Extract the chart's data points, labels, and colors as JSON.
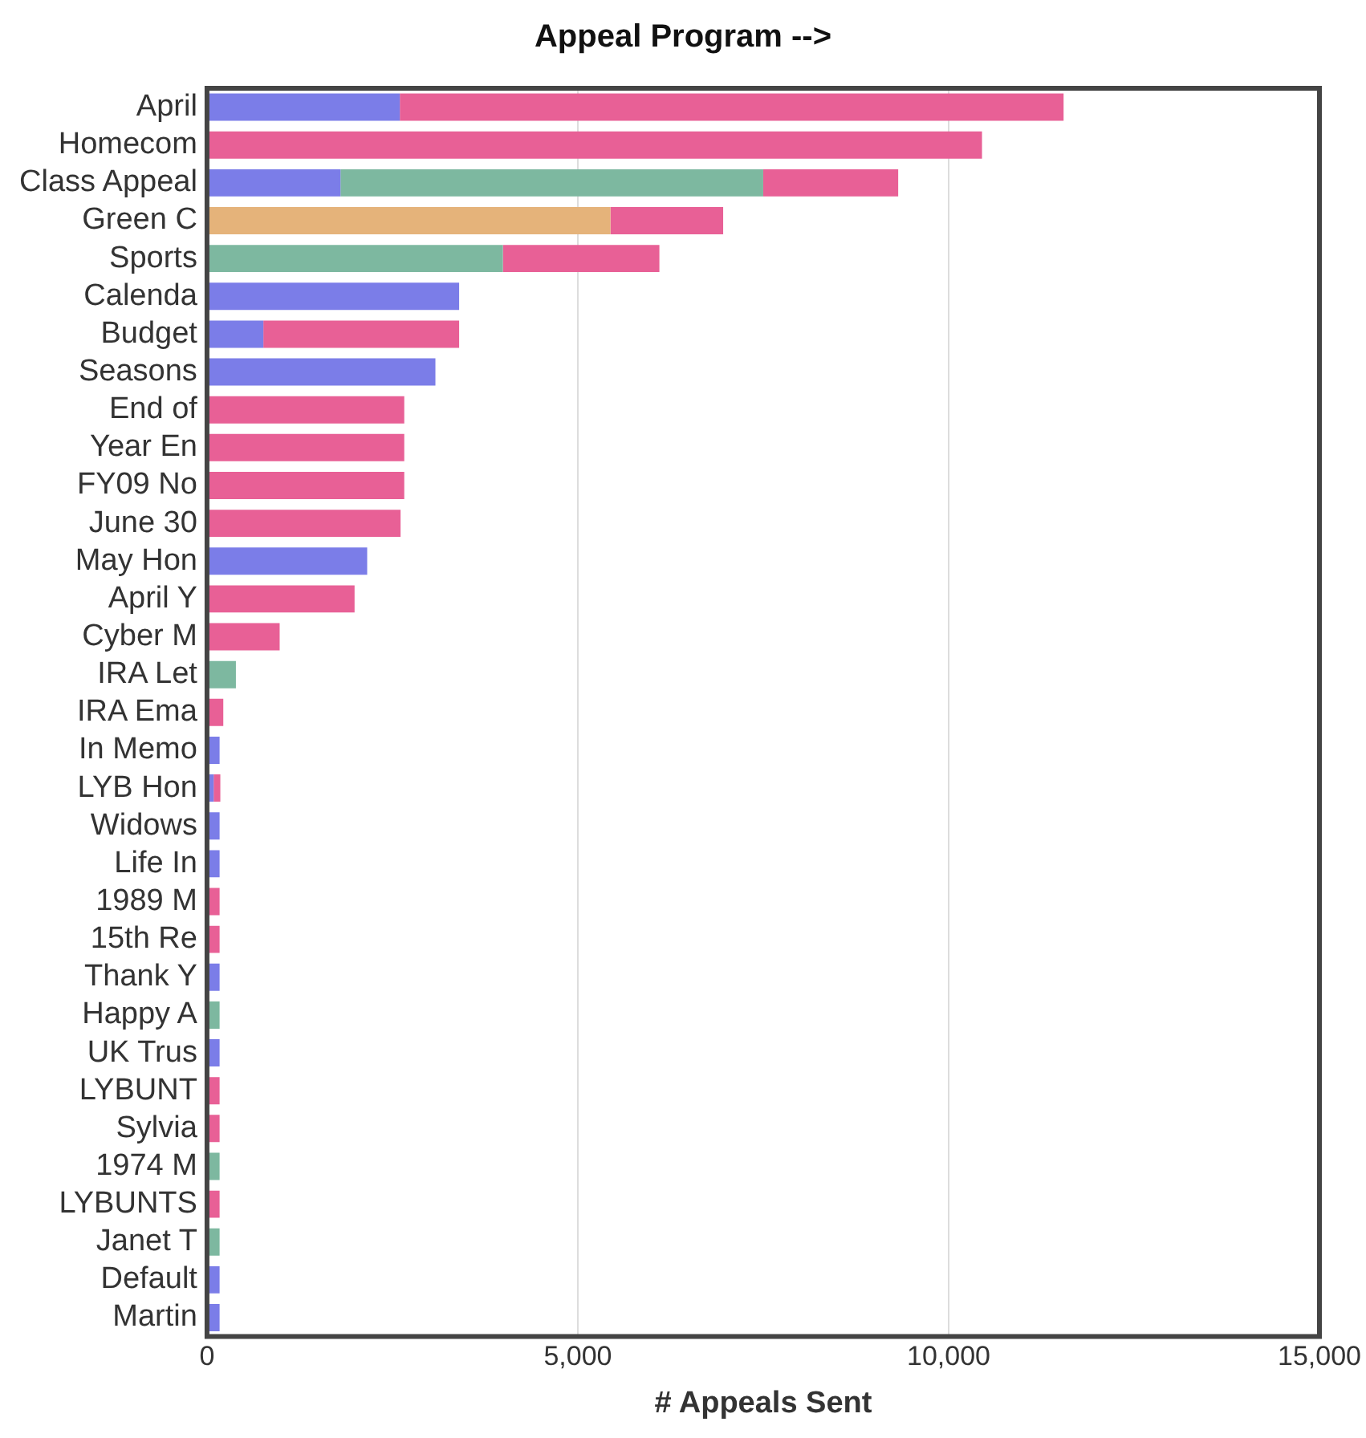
{
  "chart_data": {
    "type": "bar",
    "orientation": "horizontal",
    "stacked": true,
    "ylabel": "Appeal Program -->",
    "xlabel": "# Appeals Sent",
    "categories": [
      "April",
      "Homecom",
      "Class Appeal",
      "Green C",
      "Sports",
      "Calenda",
      "Budget",
      "Seasons",
      "End of",
      "Year En",
      "FY09 No",
      "June 30",
      "May Hon",
      "April Y",
      "Cyber M",
      "IRA Let",
      "IRA Ema",
      "In Memo",
      "LYB Hon",
      "Widows",
      "Life In",
      "1989 M",
      "15th Re",
      "Thank Y",
      "Happy A",
      "UK Trus",
      "LYBUNT",
      "Sylvia",
      "1974 M",
      "LYBUNTS",
      "Janet T",
      "Default",
      "Martin"
    ],
    "series": [
      {
        "color": "#7b7de8",
        "values": [
          2600,
          null,
          1800,
          null,
          null,
          3400,
          760,
          3080,
          null,
          null,
          null,
          null,
          2160,
          null,
          null,
          null,
          null,
          170,
          90,
          170,
          170,
          null,
          null,
          170,
          null,
          170,
          null,
          null,
          null,
          null,
          null,
          170,
          170
        ]
      },
      {
        "color": "#7db8a0",
        "values": [
          null,
          null,
          5700,
          null,
          3990,
          null,
          null,
          null,
          null,
          null,
          null,
          null,
          null,
          null,
          null,
          390,
          null,
          null,
          null,
          null,
          null,
          null,
          null,
          null,
          170,
          null,
          null,
          null,
          170,
          null,
          170,
          null,
          null
        ]
      },
      {
        "color": "#e5b37a",
        "values": [
          null,
          null,
          null,
          5440,
          null,
          null,
          null,
          null,
          null,
          null,
          null,
          null,
          null,
          null,
          null,
          null,
          null,
          null,
          null,
          null,
          null,
          null,
          null,
          null,
          null,
          null,
          null,
          null,
          null,
          null,
          null,
          null,
          null
        ]
      },
      {
        "color": "#e86096",
        "values": [
          8950,
          10450,
          1820,
          1520,
          2110,
          null,
          2640,
          null,
          2660,
          2660,
          2660,
          2610,
          null,
          1990,
          980,
          null,
          220,
          null,
          90,
          null,
          null,
          170,
          170,
          null,
          null,
          null,
          170,
          170,
          null,
          170,
          null,
          null,
          null
        ]
      }
    ],
    "xlim": [
      0,
      15000
    ],
    "xticks": [
      {
        "value": 0,
        "label": "0"
      },
      {
        "value": 5000,
        "label": "5,000"
      },
      {
        "value": 10000,
        "label": "10,000"
      },
      {
        "value": 15000,
        "label": "15,000"
      }
    ],
    "grid": "x",
    "legend": false
  }
}
